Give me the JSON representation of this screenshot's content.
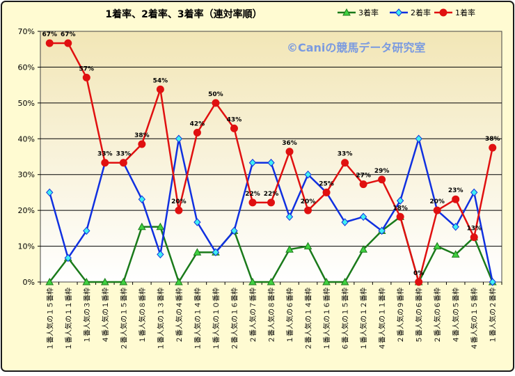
{
  "chart_data": {
    "type": "line",
    "title": "1着率、2着率、3着率（連対率順）",
    "watermark": "©Caniの競馬データ研究室",
    "xlabel": "",
    "ylabel": "",
    "ylim": [
      0,
      70
    ],
    "y_ticks": [
      "0%",
      "10%",
      "20%",
      "30%",
      "40%",
      "50%",
      "60%",
      "70%"
    ],
    "legend_position": "top-right",
    "grid": true,
    "colors": {
      "frame_border": "#1a1a1a",
      "chart_bg": "#fffbd2",
      "plot_bg_top": "#f2e6b6",
      "plot_bg_bottom": "#ffffff",
      "gridline": "#000000"
    },
    "categories": [
      "１番人気の１５番枠",
      "１番人気の１１番枠",
      "１番人気の３番枠",
      "４番人気の１番枠",
      "２番人気の１５番枠",
      "１番人気の８番枠",
      "１番人気の１３番枠",
      "２番人気の４番枠",
      "１番人気の１４番枠",
      "１番人気の１０番枠",
      "２番人気の１６番枠",
      "２番人気の７番枠",
      "２番人気の８番枠",
      "１番人気の６番枠",
      "２番人気の１４番枠",
      "１番人気の１６番枠",
      "６番人気の１５番枠",
      "１番人気の１２番枠",
      "４番人気の１１番枠",
      "２番人気の９番枠",
      "５番人気の６番枠",
      "２番人気の６番枠",
      "４番人気の５番枠",
      "４番人気の１５番枠",
      "１番人気の２番枠"
    ],
    "series": [
      {
        "name": "3着率",
        "color": "#1a7a1a",
        "marker_fill": "#40d040",
        "marker": "triangle",
        "values": [
          0,
          6.7,
          0,
          0,
          0,
          15.4,
          15.4,
          0,
          8.3,
          8.3,
          14.3,
          0,
          0,
          9.1,
          10,
          0,
          0,
          9.1,
          14.3,
          18.2,
          0,
          10,
          7.7,
          12.5,
          0
        ]
      },
      {
        "name": "2着率",
        "color": "#1030e0",
        "marker_fill": "#40f0f0",
        "marker": "diamond",
        "values": [
          25,
          6.7,
          14.3,
          33.3,
          33.3,
          23.1,
          7.7,
          40,
          16.7,
          8.3,
          14.3,
          33.3,
          33.3,
          18.2,
          30,
          25,
          16.7,
          18.2,
          14.3,
          22.7,
          40,
          20,
          15.4,
          25,
          0
        ]
      },
      {
        "name": "1着率",
        "color": "#e01010",
        "marker_fill": "#e01010",
        "marker": "circle",
        "values": [
          66.7,
          66.7,
          57.1,
          33.3,
          33.3,
          38.5,
          53.8,
          20,
          41.7,
          50,
          42.9,
          22.2,
          22.2,
          36.4,
          20,
          25,
          33.3,
          27.3,
          28.6,
          18.2,
          0,
          20,
          23.1,
          12.5,
          37.5
        ],
        "labels": [
          "67%",
          "67%",
          "57%",
          "33%",
          "33%",
          "38%",
          "54%",
          "20%",
          "42%",
          "50%",
          "43%",
          "22%",
          "22%",
          "36%",
          "20%",
          "25%",
          "33%",
          "27%",
          "29%",
          "18%",
          "0%",
          "20%",
          "23%",
          "13%",
          "38%"
        ]
      }
    ]
  }
}
